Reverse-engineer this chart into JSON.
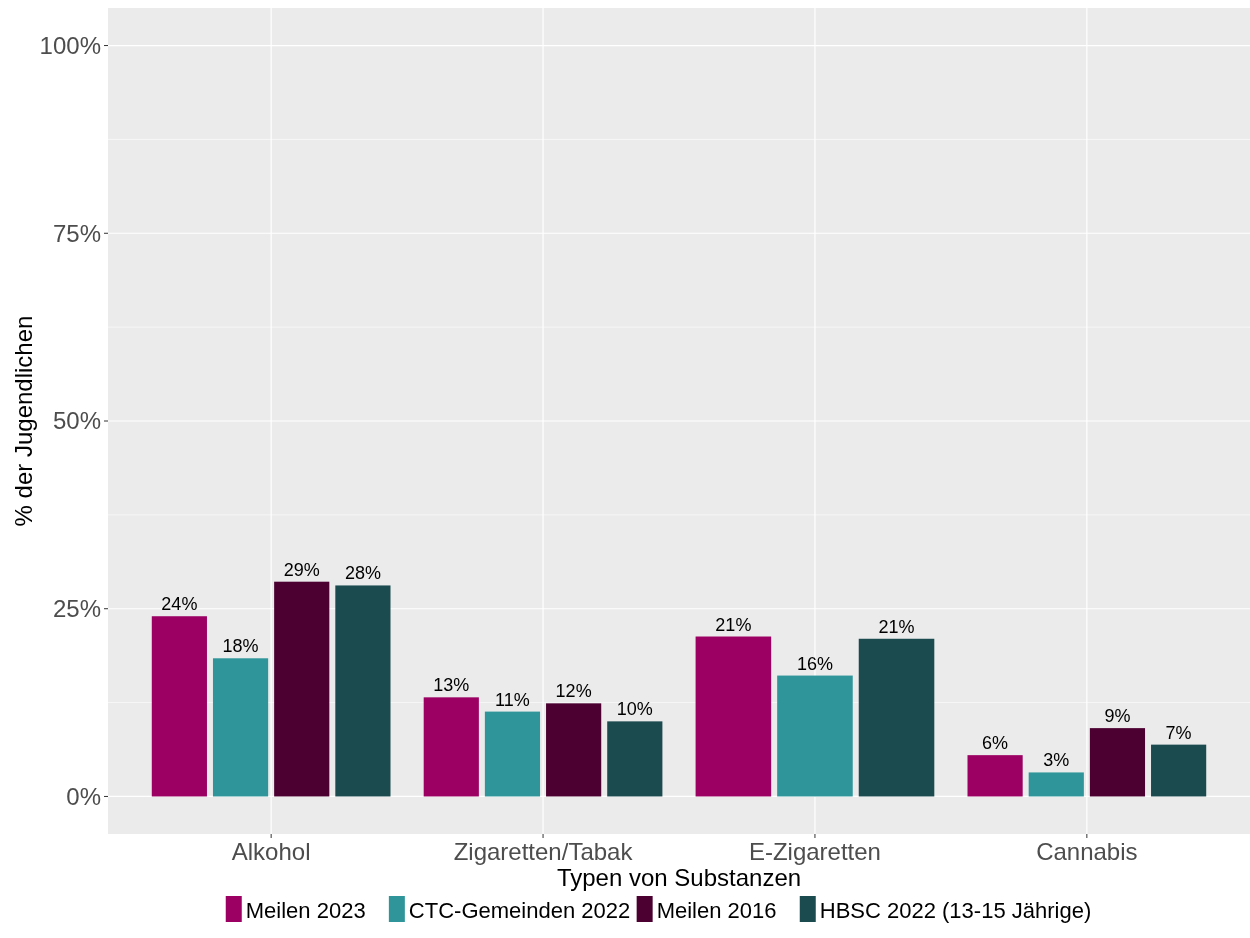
{
  "chart_data": {
    "type": "bar",
    "xlabel": "Typen von Substanzen",
    "ylabel": "% der Jugendlichen",
    "categories": [
      "Alkohol",
      "Zigaretten/Tabak",
      "E-Zigaretten",
      "Cannabis"
    ],
    "series": [
      {
        "name": "Meilen 2023",
        "color": "#9b0062",
        "values": [
          24.0,
          13.2,
          21.3,
          5.5
        ],
        "value_labels": [
          "24%",
          "13%",
          "21%",
          "6%"
        ]
      },
      {
        "name": "CTC-Gemeinden 2022",
        "color": "#2f959b",
        "values": [
          18.4,
          11.3,
          16.1,
          3.2
        ],
        "value_labels": [
          "18%",
          "11%",
          "16%",
          "3%"
        ]
      },
      {
        "name": "Meilen 2016",
        "color": "#4b0031",
        "values": [
          28.6,
          12.4,
          null,
          9.1
        ],
        "value_labels": [
          "29%",
          "12%",
          null,
          "9%"
        ]
      },
      {
        "name": "HBSC 2022 (13-15 Jährige)",
        "color": "#1b4a4f",
        "values": [
          28.1,
          10.0,
          21.0,
          6.9
        ],
        "value_labels": [
          "28%",
          "10%",
          "21%",
          "7%"
        ]
      }
    ],
    "ylim": [
      -5,
      105
    ],
    "yticks": [
      {
        "value": 0,
        "label": "0%"
      },
      {
        "value": 12.5,
        "label": null
      },
      {
        "value": 25,
        "label": "25%"
      },
      {
        "value": 37.5,
        "label": null
      },
      {
        "value": 50,
        "label": "50%"
      },
      {
        "value": 62.5,
        "label": null
      },
      {
        "value": 75,
        "label": "75%"
      },
      {
        "value": 87.5,
        "label": null
      },
      {
        "value": 100,
        "label": "100%"
      }
    ],
    "grid": true,
    "legend": "bottom"
  }
}
